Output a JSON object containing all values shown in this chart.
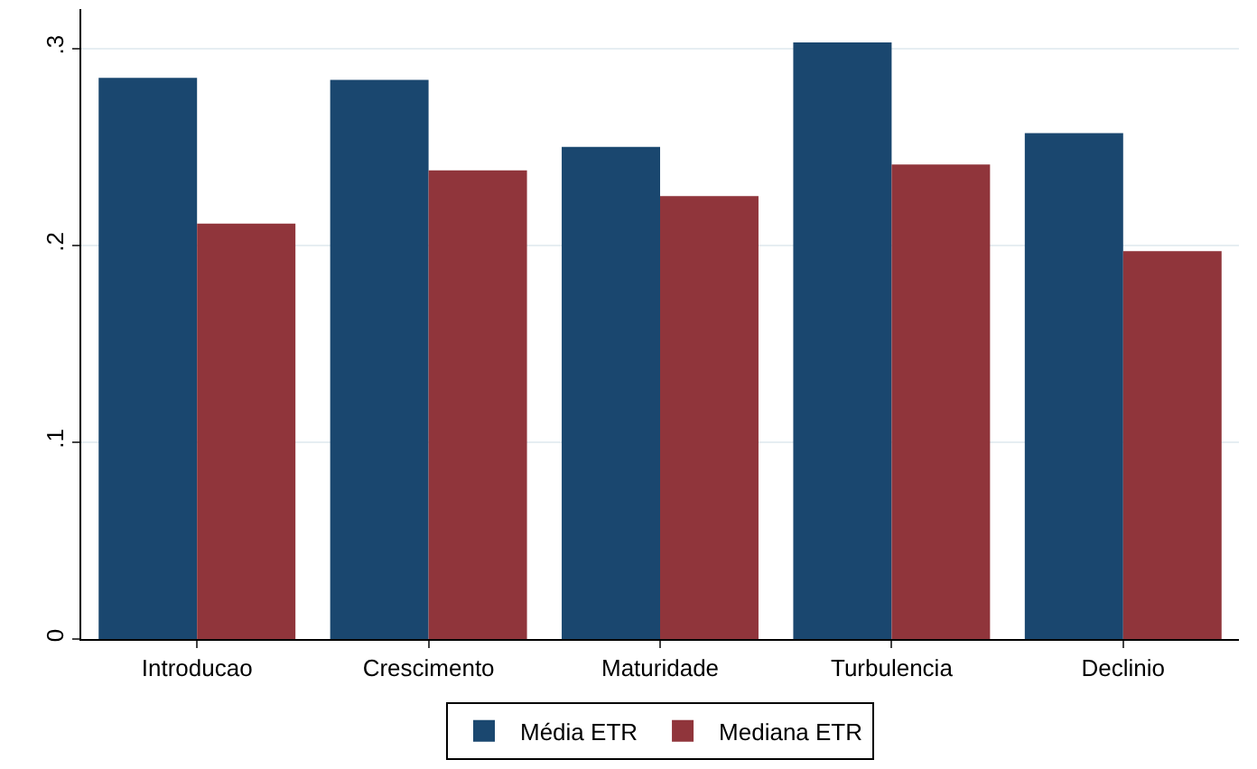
{
  "chart_data": {
    "type": "bar",
    "categories": [
      "Introducao",
      "Crescimento",
      "Maturidade",
      "Turbulencia",
      "Declinio"
    ],
    "series": [
      {
        "name": "Média ETR",
        "color": "#1a476f",
        "values": [
          0.285,
          0.284,
          0.25,
          0.303,
          0.257
        ]
      },
      {
        "name": "Mediana ETR",
        "color": "#90353b",
        "values": [
          0.211,
          0.238,
          0.225,
          0.241,
          0.197
        ]
      }
    ],
    "ylim": [
      0,
      0.32
    ],
    "yticks": [
      {
        "value": 0,
        "label": "0"
      },
      {
        "value": 0.1,
        "label": ".1"
      },
      {
        "value": 0.2,
        "label": ".2"
      },
      {
        "value": 0.3,
        "label": ".3"
      }
    ],
    "grid": "y",
    "legend": "bottom"
  }
}
